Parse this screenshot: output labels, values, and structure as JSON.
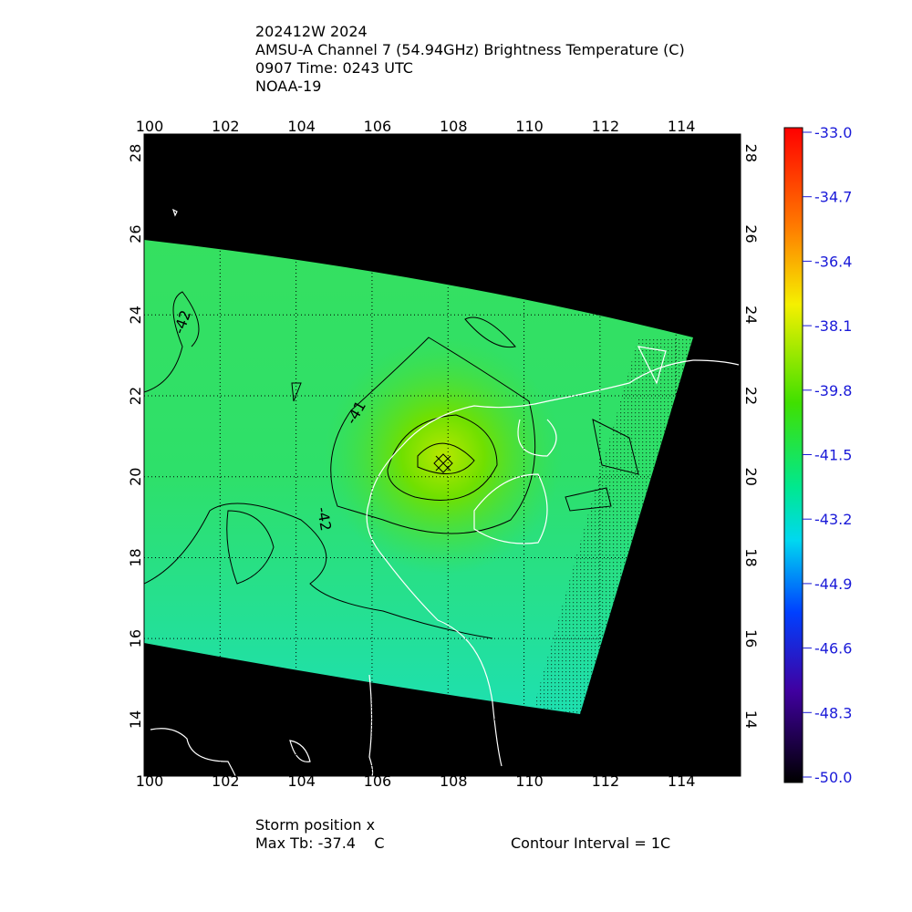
{
  "header": {
    "lines": [
      "202412W 2024",
      "AMSU-A Channel 7 (54.94GHz) Brightness Temperature (C)",
      "0907 Time: 0243 UTC",
      "NOAA-19"
    ]
  },
  "map": {
    "xlim": [
      100,
      115.7
    ],
    "ylim": [
      12.6,
      28.47
    ],
    "xticks": [
      100,
      102,
      104,
      106,
      108,
      110,
      112,
      114
    ],
    "yticks": [
      14,
      16,
      18,
      20,
      22,
      24,
      26,
      28
    ],
    "contour_labels": [
      "-42",
      "-41",
      "-42"
    ]
  },
  "colorbar": {
    "range": [
      -50,
      -33
    ],
    "ticks": [
      {
        "value": -33,
        "label": "-33.0"
      },
      {
        "value": -34.7,
        "label": "-34.7"
      },
      {
        "value": -36.4,
        "label": "-36.4"
      },
      {
        "value": -38.1,
        "label": "-38.1"
      },
      {
        "value": -39.8,
        "label": "-39.8"
      },
      {
        "value": -41.5,
        "label": "-41.5"
      },
      {
        "value": -43.2,
        "label": "-43.2"
      },
      {
        "value": -44.9,
        "label": "-44.9"
      },
      {
        "value": -46.6,
        "label": "-46.6"
      },
      {
        "value": -48.3,
        "label": "-48.3"
      },
      {
        "value": -50,
        "label": "-50.0"
      }
    ]
  },
  "footer": {
    "storm_position": "Storm position x",
    "max_tb": "Max Tb: -37.4    C",
    "contour_interval": "Contour Interval = 1C"
  }
}
